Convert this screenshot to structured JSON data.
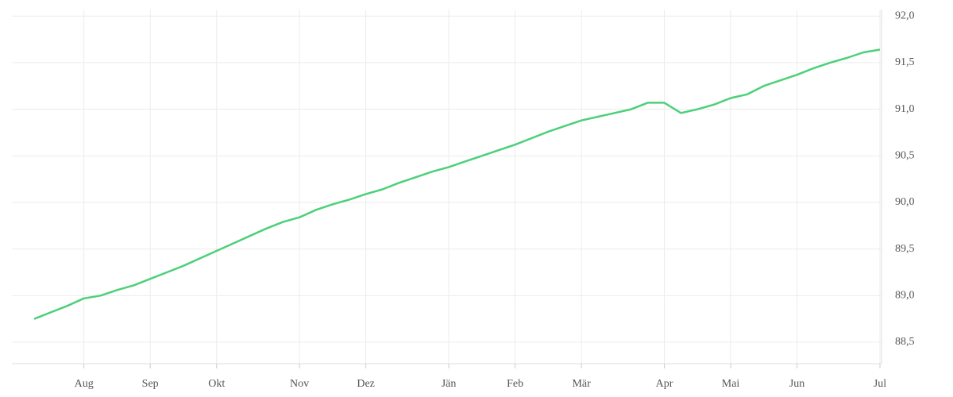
{
  "chart_data": {
    "type": "line",
    "categories": [
      null,
      null,
      null,
      "Aug",
      null,
      null,
      null,
      "Sep",
      null,
      null,
      null,
      "Okt",
      null,
      null,
      null,
      null,
      "Nov",
      null,
      null,
      null,
      "Dez",
      null,
      null,
      null,
      null,
      "Jän",
      null,
      null,
      null,
      "Feb",
      null,
      null,
      null,
      "Mär",
      null,
      null,
      null,
      null,
      "Apr",
      null,
      null,
      null,
      "Mai",
      null,
      null,
      null,
      "Jun",
      null,
      null,
      null,
      null,
      "Jul"
    ],
    "values": [
      88.75,
      88.82,
      88.89,
      88.97,
      89.0,
      89.06,
      89.11,
      89.18,
      89.25,
      89.32,
      89.4,
      89.48,
      89.56,
      89.64,
      89.72,
      89.79,
      89.84,
      89.92,
      89.98,
      90.03,
      90.09,
      90.14,
      90.21,
      90.27,
      90.33,
      90.38,
      90.44,
      90.5,
      90.56,
      90.62,
      90.69,
      90.76,
      90.82,
      90.88,
      90.92,
      90.96,
      91.0,
      91.07,
      91.07,
      90.96,
      91.0,
      91.05,
      91.12,
      91.16,
      91.25,
      91.31,
      91.37,
      91.44,
      91.5,
      91.55,
      91.61,
      91.64
    ],
    "color": "#4cd07a",
    "ylim": [
      88.27,
      92.07
    ],
    "yticks": [
      {
        "value": 88.5,
        "label": "88,5"
      },
      {
        "value": 89,
        "label": "89,0"
      },
      {
        "value": 89.5,
        "label": "89,5"
      },
      {
        "value": 90,
        "label": "90,0"
      },
      {
        "value": 90.5,
        "label": "90,5"
      },
      {
        "value": 91,
        "label": "91,0"
      },
      {
        "value": 91.5,
        "label": "91,5"
      },
      {
        "value": 92,
        "label": "92,0"
      }
    ],
    "grid": true
  }
}
